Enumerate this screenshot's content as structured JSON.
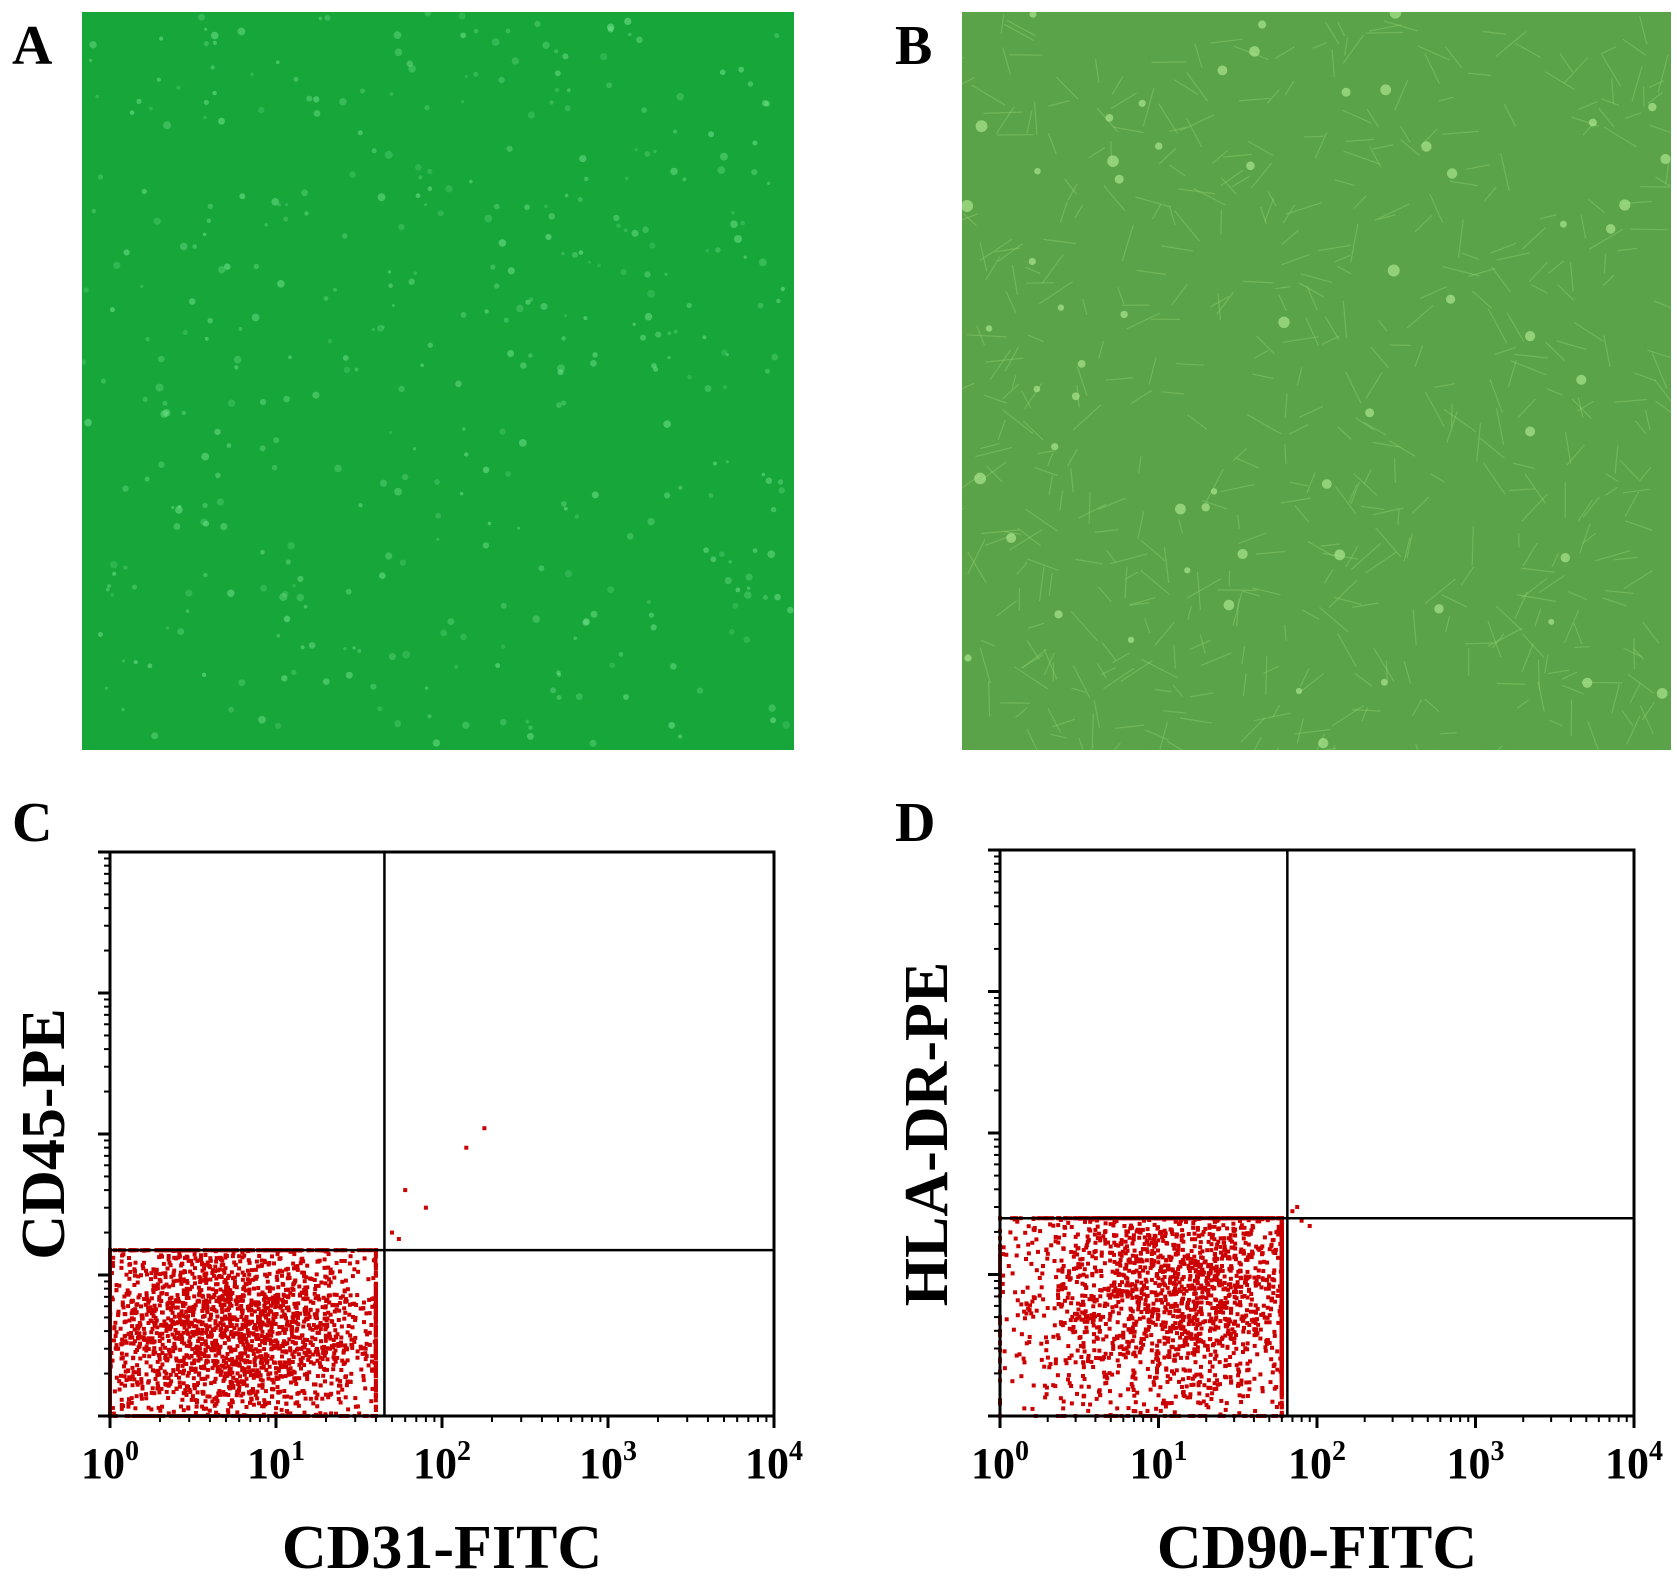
{
  "figure": {
    "panels": [
      {
        "letter": "A",
        "kind": "micrograph",
        "tint": "#17a63a"
      },
      {
        "letter": "B",
        "kind": "micrograph",
        "tint": "#5aa348"
      },
      {
        "letter": "C",
        "kind": "flow"
      },
      {
        "letter": "D",
        "kind": "flow"
      }
    ]
  },
  "chart_data": [
    {
      "panel": "C",
      "type": "scatter",
      "xlabel": "CD31-FITC",
      "ylabel": "CD45-PE",
      "x_scale": "log",
      "y_scale": "log",
      "xlim": [
        1,
        10000
      ],
      "ylim": [
        1,
        10000
      ],
      "x_ticks": [
        {
          "base": "10",
          "exp": "0"
        },
        {
          "base": "10",
          "exp": "1"
        },
        {
          "base": "10",
          "exp": "2"
        },
        {
          "base": "10",
          "exp": "3"
        },
        {
          "base": "10",
          "exp": "4"
        }
      ],
      "gate": {
        "x": 45,
        "y": 15
      },
      "point_color": "#cc0000",
      "population": {
        "x_range": [
          1,
          40
        ],
        "y_range": [
          1,
          15
        ],
        "center_x": 5,
        "center_y": 4,
        "count": 2600
      },
      "outliers": [
        [
          180,
          110
        ],
        [
          140,
          80
        ],
        [
          60,
          40
        ],
        [
          80,
          30
        ],
        [
          50,
          20
        ],
        [
          55,
          18
        ]
      ]
    },
    {
      "panel": "D",
      "type": "scatter",
      "xlabel": "CD90-FITC",
      "ylabel": "HLA-DR-PE",
      "x_scale": "log",
      "y_scale": "log",
      "xlim": [
        1,
        10000
      ],
      "ylim": [
        1,
        10000
      ],
      "x_ticks": [
        {
          "base": "10",
          "exp": "0"
        },
        {
          "base": "10",
          "exp": "1"
        },
        {
          "base": "10",
          "exp": "2"
        },
        {
          "base": "10",
          "exp": "3"
        },
        {
          "base": "10",
          "exp": "4"
        }
      ],
      "gate": {
        "x": 65,
        "y": 25
      },
      "point_color": "#cc0000",
      "population": {
        "x_range": [
          1,
          60
        ],
        "y_range": [
          1,
          25
        ],
        "center_x": 15,
        "center_y": 8,
        "count": 2400
      },
      "outliers": [
        [
          70,
          28
        ],
        [
          80,
          24
        ],
        [
          90,
          22
        ],
        [
          75,
          30
        ]
      ]
    }
  ]
}
